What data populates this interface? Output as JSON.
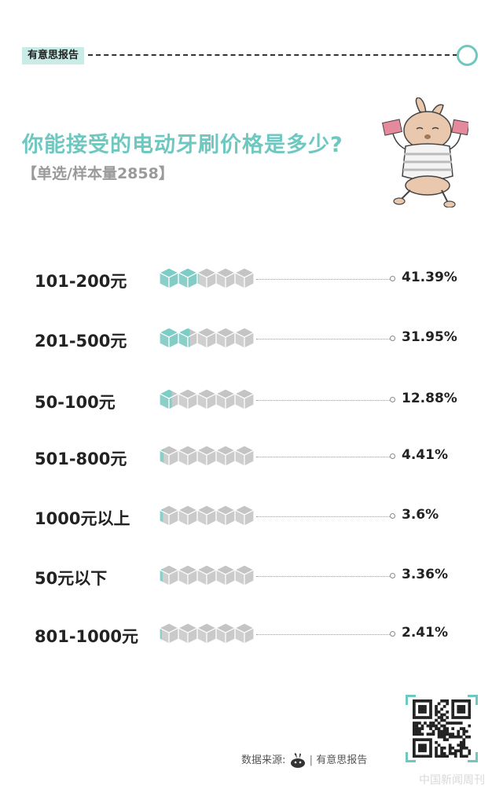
{
  "header": {
    "tag": "有意思报告"
  },
  "title": "你能接受的电动牙刷价格是多少?",
  "subtitle": "【单选/样本量2858】",
  "chart_data": {
    "type": "bar",
    "title": "你能接受的电动牙刷价格是多少?",
    "subtitle": "【单选/样本量2858】",
    "categories": [
      "101-200元",
      "201-500元",
      "50-100元",
      "501-800元",
      "1000元以上",
      "50元以下",
      "801-1000元"
    ],
    "values": [
      41.39,
      31.95,
      12.88,
      4.41,
      3.6,
      3.36,
      2.41
    ],
    "value_labels": [
      "41.39%",
      "31.95%",
      "12.88%",
      "4.41%",
      "3.6%",
      "3.36%",
      "2.41%"
    ],
    "ylim": [
      0,
      100
    ],
    "unit": "%",
    "encoding": "5 isometric cubes per row filled with teal proportional to value"
  },
  "colors": {
    "accent": "#6fc8c0",
    "cube_filled": "#7ccdc6",
    "cube_empty": "#c4c4c4"
  },
  "footer": {
    "source_label": "数据来源:",
    "source_name": "有意思报告",
    "separator": "|"
  },
  "watermark": "中国新闻周刊",
  "icons": {
    "header_end": "circle-outline-icon",
    "mascot": "bunny-holding-money-icon",
    "source_logo": "bunny-logo-icon",
    "qr": "qr-code-icon"
  }
}
